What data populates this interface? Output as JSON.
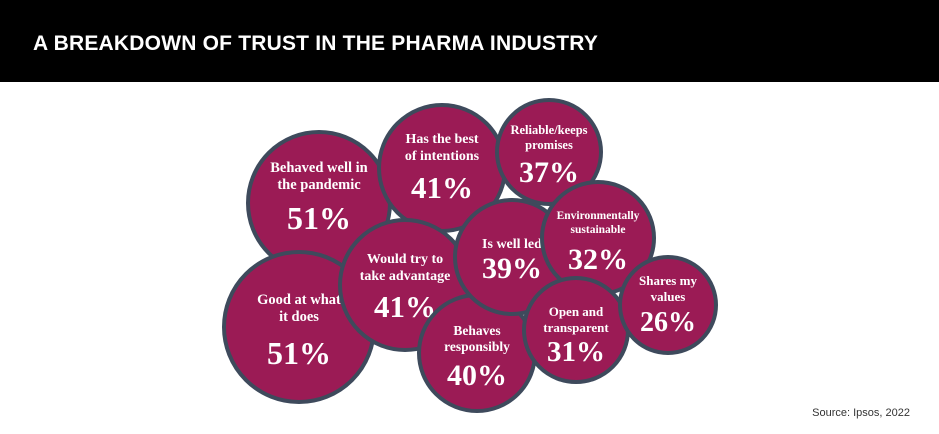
{
  "header": {
    "title": "A BREAKDOWN OF TRUST IN THE PHARMA INDUSTRY"
  },
  "source": "Source: Ipsos, 2022",
  "colors": {
    "bubble_fill": "#9b1b55",
    "bubble_stroke": "#3e4a5c",
    "header_bg": "#000000"
  },
  "chart_data": {
    "type": "bubble",
    "title": "A BREAKDOWN OF TRUST IN THE PHARMA INDUSTRY",
    "unit": "%",
    "items": [
      {
        "label_lines": [
          "Behaved well in",
          "the pandemic"
        ],
        "value": 51,
        "display": "51%"
      },
      {
        "label_lines": [
          "Good at what",
          "it does"
        ],
        "value": 51,
        "display": "51%"
      },
      {
        "label_lines": [
          "Has the best",
          "of intentions"
        ],
        "value": 41,
        "display": "41%"
      },
      {
        "label_lines": [
          "Would try to",
          "take advantage"
        ],
        "value": 41,
        "display": "41%"
      },
      {
        "label_lines": [
          "Behaves",
          "responsibly"
        ],
        "value": 40,
        "display": "40%"
      },
      {
        "label_lines": [
          "Is well led"
        ],
        "value": 39,
        "display": "39%"
      },
      {
        "label_lines": [
          "Reliable/keeps",
          "promises"
        ],
        "value": 37,
        "display": "37%"
      },
      {
        "label_lines": [
          "Environmentally",
          "sustainable"
        ],
        "value": 32,
        "display": "32%"
      },
      {
        "label_lines": [
          "Open and",
          "transparent"
        ],
        "value": 31,
        "display": "31%"
      },
      {
        "label_lines": [
          "Shares my",
          "values"
        ],
        "value": 26,
        "display": "26%"
      }
    ]
  }
}
